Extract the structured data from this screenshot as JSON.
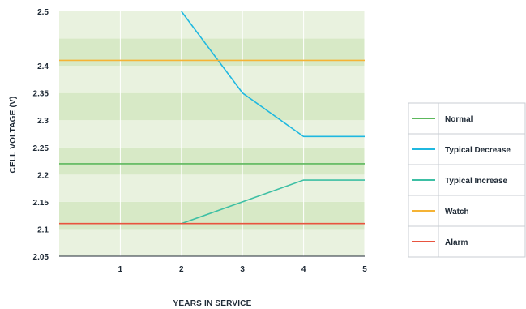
{
  "chart_data": {
    "type": "line",
    "xlabel": "YEARS IN SERVICE",
    "ylabel": "CELL VOLTAGE (V)",
    "xlim": [
      0,
      5
    ],
    "ylim": [
      2.05,
      2.5
    ],
    "x_ticks": [
      "1",
      "2",
      "3",
      "4",
      "5"
    ],
    "y_ticks": [
      "2.05",
      "2.1",
      "2.15",
      "2.2",
      "2.25",
      "2.3",
      "2.35",
      "2.4",
      "2.5"
    ],
    "grid": true,
    "legend_position": "right",
    "series": [
      {
        "name": "Normal",
        "color": "#5cb85c",
        "x": [
          0,
          5
        ],
        "y": [
          2.22,
          2.22
        ]
      },
      {
        "name": "Typical Decrease",
        "color": "#1fb8e0",
        "x": [
          2,
          3,
          4,
          5
        ],
        "y": [
          2.5,
          2.35,
          2.27,
          2.27
        ]
      },
      {
        "name": "Typical Increase",
        "color": "#3dbfa4",
        "x": [
          2,
          3,
          4,
          5
        ],
        "y": [
          2.11,
          2.15,
          2.19,
          2.19
        ]
      },
      {
        "name": "Watch",
        "color": "#f5b335",
        "x": [
          0,
          5
        ],
        "y": [
          2.41,
          2.41
        ]
      },
      {
        "name": "Alarm",
        "color": "#e8543f",
        "x": [
          0,
          5
        ],
        "y": [
          2.11,
          2.11
        ]
      }
    ],
    "bands": {
      "colors": [
        "#e9f2df",
        "#d7e9c6"
      ]
    }
  }
}
